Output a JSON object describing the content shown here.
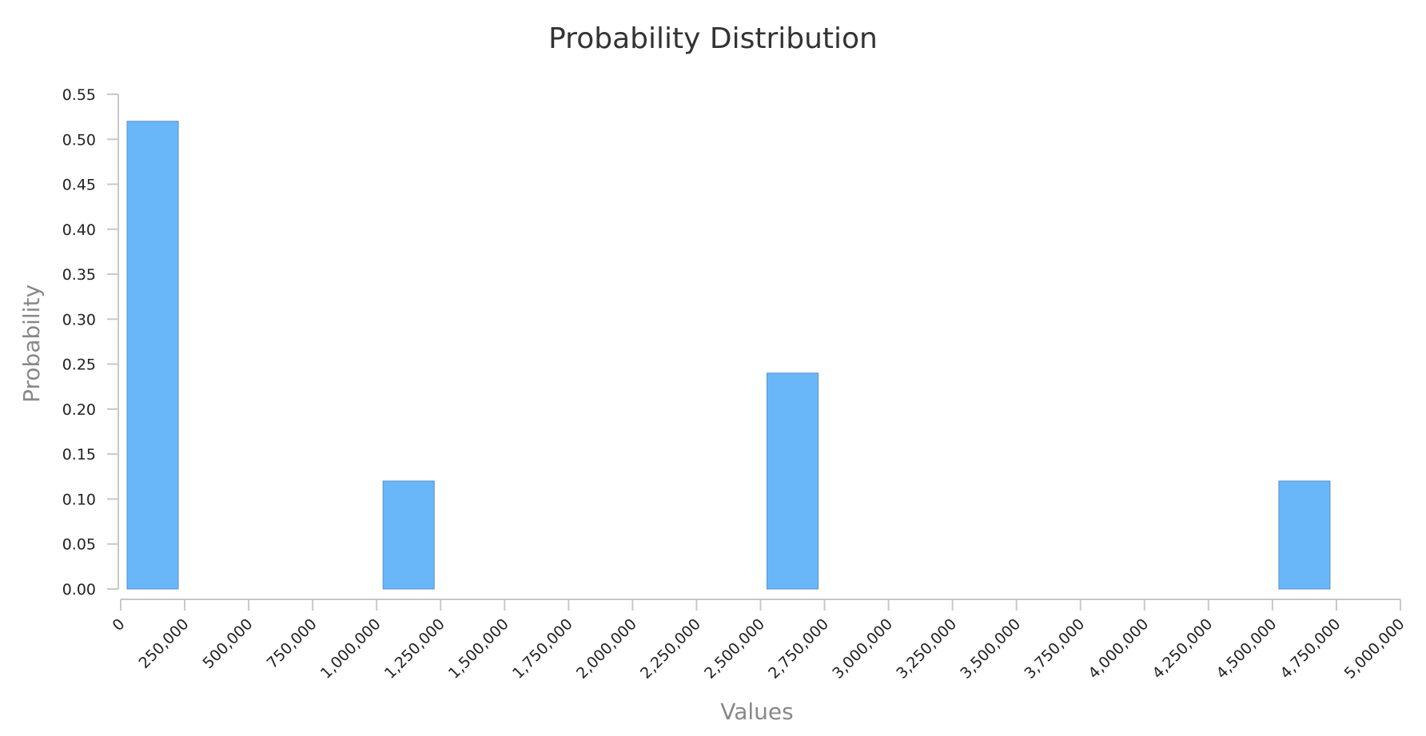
{
  "chart_data": {
    "type": "bar",
    "title": "Probability Distribution",
    "xlabel": "Values",
    "ylabel": "Probability",
    "xlim": [
      0,
      5000000
    ],
    "ylim": [
      0,
      0.55
    ],
    "x_ticks": [
      "0",
      "250,000",
      "500,000",
      "750,000",
      "1,000,000",
      "1,250,000",
      "1,500,000",
      "1,750,000",
      "2,000,000",
      "2,250,000",
      "2,500,000",
      "2,750,000",
      "3,000,000",
      "3,250,000",
      "3,500,000",
      "3,750,000",
      "4,000,000",
      "4,250,000",
      "4,500,000",
      "4,750,000",
      "5,000,000"
    ],
    "y_ticks": [
      "0.00",
      "0.05",
      "0.10",
      "0.15",
      "0.20",
      "0.25",
      "0.30",
      "0.35",
      "0.40",
      "0.45",
      "0.50",
      "0.55"
    ],
    "bars": [
      {
        "x_start": 25000,
        "x_end": 225000,
        "value": 0.52
      },
      {
        "x_start": 1025000,
        "x_end": 1225000,
        "value": 0.12
      },
      {
        "x_start": 2525000,
        "x_end": 2725000,
        "value": 0.24
      },
      {
        "x_start": 4525000,
        "x_end": 4725000,
        "value": 0.12
      }
    ],
    "bar_color": "#69b7f8",
    "grid": false,
    "legend": "none"
  }
}
